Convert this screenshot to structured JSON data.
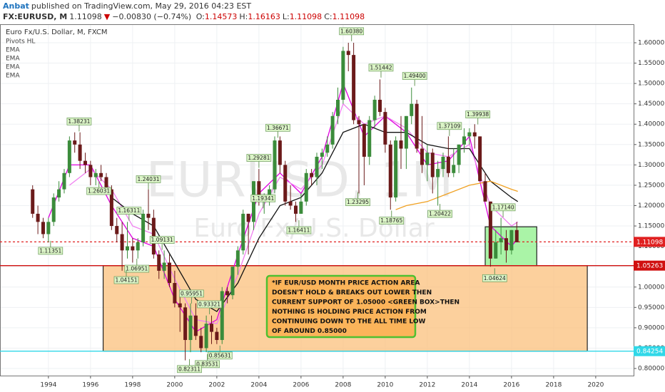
{
  "header": {
    "author": "Anbat",
    "published": "published on TradingView.com, May 29, 2016 04:23 EST",
    "symbol": "FX:EURUSD, M",
    "last": "1.11098",
    "arrow": "▼",
    "change": "−0.00830 (−0.74%)",
    "ohlc": [
      {
        "key": "O:",
        "value": "1.14573"
      },
      {
        "key": "H:",
        "value": "1.16163"
      },
      {
        "key": "L:",
        "value": "1.11098"
      },
      {
        "key": "C:",
        "value": "1.11098"
      }
    ]
  },
  "chart_data": {
    "type": "candlestick",
    "title": "Euro Fx/U.S. Dollar, M, FXCM",
    "indicators": [
      "Pivots HL",
      "EMA",
      "EMA",
      "EMA",
      "EMA"
    ],
    "watermark": [
      "EURUSD, 1M",
      "Euro Fx/U.S. Dollar"
    ],
    "xlim": [
      1991.7,
      2021.8
    ],
    "xticks": [
      1994,
      1996,
      1998,
      2000,
      2002,
      2004,
      2006,
      2008,
      2010,
      2012,
      2014,
      2016,
      2018,
      2020
    ],
    "ylim": [
      0.7825,
      1.6455
    ],
    "yticks": [
      {
        "value": 0.8,
        "label": "0.80000"
      },
      {
        "value": 0.85,
        "label": "0.85000"
      },
      {
        "value": 0.9,
        "label": "0.90000"
      },
      {
        "value": 0.95,
        "label": "0.95000"
      },
      {
        "value": 1.0,
        "label": "1.00000"
      },
      {
        "value": 1.05,
        "label": "1.05000"
      },
      {
        "value": 1.1,
        "label": "1.10000"
      },
      {
        "value": 1.15,
        "label": "1.15000"
      },
      {
        "value": 1.2,
        "label": "1.20000"
      },
      {
        "value": 1.25,
        "label": "1.25000"
      },
      {
        "value": 1.3,
        "label": "1.30000"
      },
      {
        "value": 1.35,
        "label": "1.35000"
      },
      {
        "value": 1.4,
        "label": "1.40000"
      },
      {
        "value": 1.45,
        "label": "1.45000"
      },
      {
        "value": 1.5,
        "label": "1.50000"
      },
      {
        "value": 1.55,
        "label": "1.55000"
      },
      {
        "value": 1.6,
        "label": "1.60000"
      }
    ],
    "grid": true,
    "up_color": "#3b8c3b",
    "down_color": "#6b1a1a",
    "x": [
      1993.25,
      1993.5,
      1993.75,
      1994,
      1994.25,
      1994.5,
      1994.75,
      1995,
      1995.25,
      1995.5,
      1995.75,
      1996,
      1996.25,
      1996.5,
      1996.75,
      1997,
      1997.25,
      1997.5,
      1997.75,
      1998,
      1998.25,
      1998.5,
      1998.75,
      1999,
      1999.25,
      1999.5,
      1999.75,
      2000,
      2000.25,
      2000.5,
      2000.75,
      2001,
      2001.25,
      2001.5,
      2001.75,
      2002,
      2002.25,
      2002.5,
      2002.75,
      2003,
      2003.25,
      2003.5,
      2003.75,
      2004,
      2004.25,
      2004.5,
      2004.75,
      2005,
      2005.25,
      2005.5,
      2005.75,
      2006,
      2006.25,
      2006.5,
      2006.75,
      2007,
      2007.25,
      2007.5,
      2007.75,
      2008,
      2008.25,
      2008.5,
      2008.75,
      2009,
      2009.25,
      2009.5,
      2009.75,
      2010,
      2010.25,
      2010.5,
      2010.75,
      2011,
      2011.25,
      2011.5,
      2011.75,
      2012,
      2012.25,
      2012.5,
      2012.75,
      2013,
      2013.25,
      2013.5,
      2013.75,
      2014,
      2014.25,
      2014.5,
      2014.75,
      2015,
      2015.25,
      2015.5,
      2015.75,
      2016,
      2016.25
    ],
    "open": [
      1.24,
      1.18,
      1.16,
      1.13,
      1.16,
      1.22,
      1.24,
      1.28,
      1.36,
      1.35,
      1.31,
      1.3,
      1.27,
      1.28,
      1.27,
      1.24,
      1.15,
      1.13,
      1.09,
      1.1,
      1.09,
      1.11,
      1.18,
      1.17,
      1.08,
      1.04,
      1.06,
      1.01,
      0.96,
      0.95,
      0.87,
      0.93,
      0.88,
      0.85,
      0.91,
      0.89,
      0.87,
      0.99,
      0.98,
      1.05,
      1.09,
      1.18,
      1.16,
      1.26,
      1.22,
      1.22,
      1.24,
      1.36,
      1.3,
      1.21,
      1.2,
      1.18,
      1.21,
      1.28,
      1.27,
      1.32,
      1.33,
      1.35,
      1.42,
      1.46,
      1.58,
      1.57,
      1.41,
      1.4,
      1.32,
      1.41,
      1.46,
      1.43,
      1.35,
      1.22,
      1.36,
      1.34,
      1.42,
      1.45,
      1.34,
      1.3,
      1.33,
      1.27,
      1.29,
      1.32,
      1.28,
      1.3,
      1.35,
      1.37,
      1.38,
      1.37,
      1.26,
      1.21,
      1.07,
      1.11,
      1.12,
      1.09,
      1.14
    ],
    "high": [
      1.25,
      1.2,
      1.17,
      1.17,
      1.23,
      1.26,
      1.29,
      1.37,
      1.38,
      1.38,
      1.33,
      1.31,
      1.29,
      1.3,
      1.28,
      1.25,
      1.17,
      1.16,
      1.16,
      1.12,
      1.12,
      1.19,
      1.24,
      1.19,
      1.09,
      1.09,
      1.08,
      1.04,
      0.98,
      0.96,
      0.96,
      0.96,
      0.9,
      0.93,
      0.93,
      0.9,
      1.0,
      1.0,
      1.05,
      1.1,
      1.19,
      1.18,
      1.26,
      1.29,
      1.23,
      1.25,
      1.37,
      1.37,
      1.31,
      1.25,
      1.21,
      1.23,
      1.29,
      1.29,
      1.33,
      1.34,
      1.37,
      1.43,
      1.49,
      1.59,
      1.6,
      1.6,
      1.42,
      1.4,
      1.42,
      1.47,
      1.51,
      1.44,
      1.36,
      1.37,
      1.42,
      1.42,
      1.49,
      1.46,
      1.42,
      1.35,
      1.34,
      1.31,
      1.33,
      1.37,
      1.34,
      1.35,
      1.39,
      1.39,
      1.4,
      1.37,
      1.28,
      1.21,
      1.14,
      1.17,
      1.14,
      1.14,
      1.16
    ],
    "low": [
      1.17,
      1.13,
      1.12,
      1.11,
      1.15,
      1.21,
      1.23,
      1.27,
      1.33,
      1.29,
      1.28,
      1.25,
      1.25,
      1.26,
      1.23,
      1.14,
      1.11,
      1.04,
      1.07,
      1.06,
      1.07,
      1.1,
      1.14,
      1.07,
      1.02,
      1.02,
      1.0,
      0.95,
      0.89,
      0.82,
      0.84,
      0.87,
      0.84,
      0.84,
      0.86,
      0.86,
      0.86,
      0.96,
      0.97,
      1.03,
      1.08,
      1.08,
      1.14,
      1.2,
      1.18,
      1.2,
      1.23,
      1.28,
      1.2,
      1.19,
      1.16,
      1.18,
      1.2,
      1.25,
      1.25,
      1.29,
      1.32,
      1.34,
      1.4,
      1.45,
      1.53,
      1.4,
      1.23,
      1.25,
      1.3,
      1.39,
      1.42,
      1.33,
      1.19,
      1.21,
      1.29,
      1.29,
      1.4,
      1.33,
      1.28,
      1.26,
      1.23,
      1.2,
      1.27,
      1.27,
      1.27,
      1.28,
      1.33,
      1.35,
      1.34,
      1.26,
      1.21,
      1.05,
      1.07,
      1.08,
      1.06,
      1.08,
      1.11
    ],
    "close": [
      1.18,
      1.16,
      1.13,
      1.16,
      1.22,
      1.24,
      1.28,
      1.36,
      1.35,
      1.31,
      1.3,
      1.27,
      1.28,
      1.27,
      1.24,
      1.15,
      1.13,
      1.09,
      1.1,
      1.09,
      1.11,
      1.18,
      1.17,
      1.08,
      1.04,
      1.06,
      1.01,
      0.96,
      0.95,
      0.87,
      0.93,
      0.88,
      0.85,
      0.91,
      0.89,
      0.87,
      0.99,
      0.98,
      1.05,
      1.09,
      1.18,
      1.16,
      1.26,
      1.22,
      1.22,
      1.24,
      1.36,
      1.3,
      1.21,
      1.2,
      1.18,
      1.21,
      1.28,
      1.27,
      1.32,
      1.33,
      1.35,
      1.42,
      1.46,
      1.58,
      1.57,
      1.41,
      1.4,
      1.32,
      1.41,
      1.46,
      1.43,
      1.35,
      1.22,
      1.36,
      1.34,
      1.42,
      1.45,
      1.34,
      1.3,
      1.33,
      1.27,
      1.29,
      1.32,
      1.28,
      1.3,
      1.35,
      1.37,
      1.38,
      1.37,
      1.26,
      1.21,
      1.07,
      1.11,
      1.12,
      1.09,
      1.14,
      1.11
    ],
    "lines": [
      {
        "color": "#e000e0",
        "x": [
          1994,
          1995,
          1996,
          1997,
          1998,
          1999,
          2000,
          2001,
          2002,
          2003,
          2004,
          2005,
          2006,
          2007,
          2008,
          2009,
          2010,
          2011,
          2012,
          2013,
          2014,
          2015,
          2016,
          2016.3
        ],
        "values": [
          1.17,
          1.3,
          1.3,
          1.2,
          1.12,
          1.1,
          0.97,
          0.89,
          0.92,
          1.08,
          1.23,
          1.28,
          1.23,
          1.32,
          1.5,
          1.37,
          1.42,
          1.38,
          1.3,
          1.31,
          1.37,
          1.15,
          1.1,
          1.12
        ]
      },
      {
        "color": "#f080f0",
        "x": [
          1995,
          1996,
          1997,
          1998,
          1999,
          2000,
          2001,
          2002,
          2003,
          2004,
          2005,
          2006,
          2007,
          2008,
          2009,
          2010,
          2011,
          2012,
          2013,
          2014,
          2015,
          2016,
          2016.3
        ],
        "values": [
          1.25,
          1.29,
          1.24,
          1.15,
          1.13,
          1.02,
          0.92,
          0.91,
          1.03,
          1.18,
          1.27,
          1.24,
          1.3,
          1.45,
          1.4,
          1.42,
          1.39,
          1.33,
          1.32,
          1.35,
          1.2,
          1.15,
          1.16
        ]
      },
      {
        "color": "#111111",
        "x": [
          1997,
          1998,
          1999,
          2000,
          2001,
          2002,
          2003,
          2004,
          2005,
          2006,
          2007,
          2008,
          2009,
          2010,
          2011,
          2012,
          2013,
          2014,
          2015,
          2016,
          2016.3
        ],
        "values": [
          1.22,
          1.18,
          1.15,
          1.06,
          0.97,
          0.94,
          1.01,
          1.12,
          1.2,
          1.22,
          1.28,
          1.38,
          1.4,
          1.38,
          1.38,
          1.35,
          1.34,
          1.34,
          1.26,
          1.22,
          1.21
        ]
      },
      {
        "color": "#f0a020",
        "x": [
          2010.5,
          2011,
          2012,
          2013,
          2014,
          2015,
          2016,
          2016.3
        ],
        "values": [
          1.19,
          1.2,
          1.21,
          1.23,
          1.25,
          1.26,
          1.24,
          1.235
        ]
      }
    ],
    "pivots": {
      "x": [
        1995.46,
        1996.4,
        1994.1,
        1998.75,
        1997.83,
        1998.2,
        1997.7,
        1999.4,
        2000.8,
        2001.65,
        2002.15,
        2001.55,
        2000.7,
        2004.2,
        2004.0,
        2004.9,
        2005.9,
        2008.4,
        2008.7,
        2009.8,
        2010.3,
        2011.4,
        2012.6,
        2013.05,
        2014.4,
        2015.6,
        2015.2
      ],
      "values": [
        1.38231,
        1.26031,
        1.11351,
        1.24031,
        1.16311,
        1.06951,
        1.04151,
        1.09131,
        0.95951,
        0.93321,
        0.85631,
        0.83531,
        0.82311,
        1.19341,
        1.29281,
        1.36671,
        1.16411,
        1.6038,
        1.23295,
        1.51442,
        1.18765,
        1.494,
        1.20422,
        1.37109,
        1.39938,
        1.1714,
        1.04624
      ],
      "value_labels": [
        "1.38231",
        "1.26031",
        "1.11351",
        "1.24031",
        "1.16311",
        "1.06951",
        "1.04151",
        "1.09131",
        "0.95951",
        "0.93321",
        "0.85631",
        "0.83531",
        "0.82311",
        "1.19341",
        "1.29281",
        "1.36671",
        "1.16411",
        "1.60380",
        "1.23295",
        "1.51442",
        "1.18765",
        "1.49400",
        "1.20422",
        "1.37109",
        "1.39938",
        "1.17140",
        "1.04624"
      ],
      "side": [
        "high",
        "low",
        "low",
        "high",
        "high",
        "low",
        "low",
        "high",
        "high",
        "high",
        "low",
        "low",
        "low",
        "high",
        "high",
        "high",
        "low",
        "high",
        "low",
        "high",
        "low",
        "high",
        "low",
        "high",
        "high",
        "high",
        "low"
      ]
    },
    "zones": [
      {
        "x": [
          1996.6,
          2019.6
        ],
        "y": [
          0.84254,
          1.05263
        ],
        "color": "#fbc07c"
      },
      {
        "x": [
          2014.75,
          2017.2
        ],
        "y": [
          1.05263,
          1.148
        ],
        "color": "#8ef08a"
      }
    ],
    "levels": [
      {
        "value": 1.11098,
        "color": "#e02020",
        "style": "dotted"
      },
      {
        "value": 1.05263,
        "color": "#d01010",
        "style": "solid"
      },
      {
        "value": 0.84254,
        "color": "#30d8e8",
        "style": "solid"
      }
    ],
    "annotation": [
      "*IF EUR/USD MONTH PRICE ACTION AREA",
      "DOESN'T HOLD & BREAKS OUT LOWER THEN",
      "CURRENT SUPPORT OF 1.05000 <GREEN BOX>THEN",
      "NOTHING IS HOLDING PRICE ACTION FROM",
      "CONTINUING DOWN TO THE ALL TIME LOW",
      "OF AROUND 0.85000"
    ]
  }
}
